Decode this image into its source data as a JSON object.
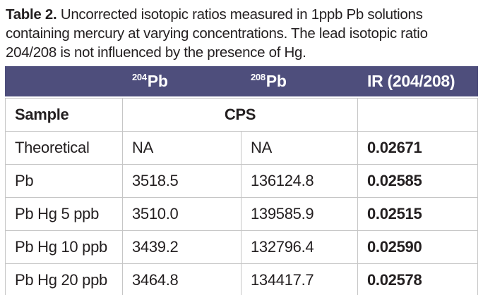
{
  "caption": {
    "label": "Table 2.",
    "text": " Uncorrected isotopic ratios measured in 1ppb Pb solutions containing mercury at varying concentrations. The lead isotopic ratio 204/208 is not influenced by the presence of Hg."
  },
  "table": {
    "columns": {
      "pb204": {
        "sup": "204",
        "base": "Pb"
      },
      "pb208": {
        "sup": "208",
        "base": "Pb"
      },
      "ir": "IR (204/208)"
    },
    "subheader": {
      "sample": "Sample",
      "cps": "CPS"
    },
    "rows": [
      {
        "sample": "Theoretical",
        "pb204": "NA",
        "pb208": "NA",
        "ir": "0.02671"
      },
      {
        "sample": "Pb",
        "pb204": "3518.5",
        "pb208": "136124.8",
        "ir": "0.02585"
      },
      {
        "sample": "Pb Hg 5 ppb",
        "pb204": "3510.0",
        "pb208": "139585.9",
        "ir": "0.02515"
      },
      {
        "sample": "Pb Hg 10 ppb",
        "pb204": "3439.2",
        "pb208": "132796.4",
        "ir": "0.02590"
      },
      {
        "sample": "Pb Hg 20 ppb",
        "pb204": "3464.8",
        "pb208": "134417.7",
        "ir": "0.02578"
      }
    ]
  },
  "colors": {
    "header_bg": "#4e4e7c",
    "header_text": "#ffffff",
    "grid_border": "#c6c6c6",
    "body_text": "#231f20"
  }
}
